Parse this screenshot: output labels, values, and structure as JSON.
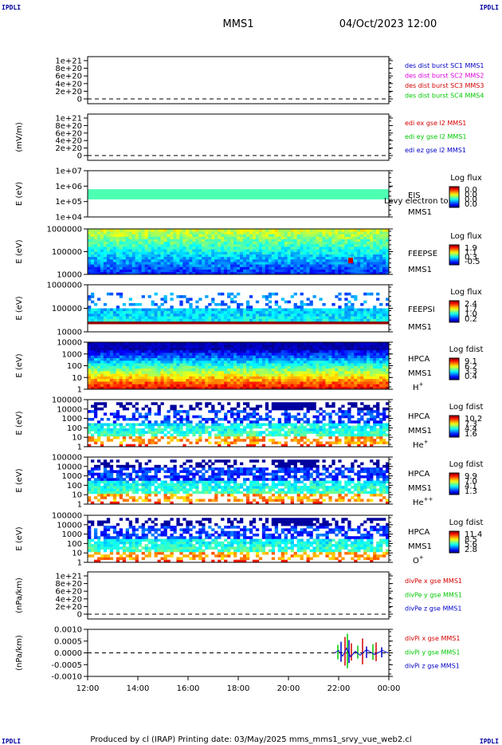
{
  "corners": {
    "tl": "IPDLI",
    "tr": "IPDLI",
    "bl": "IPDLI",
    "br": "IPDLI"
  },
  "header": {
    "mission": "MMS1",
    "date": "04/Oct/2023 12:00"
  },
  "footer": {
    "text": "Produced by cl (IRAP)   Printing date: 03/May/2025   mms_mms1_srvy_vue_web2.cl"
  },
  "colors": {
    "red": "#d40000",
    "green": "#00c800",
    "blue": "#0000c8",
    "magenta": "#e000e0"
  },
  "chart_data": {
    "type": "heatmap",
    "x_ticks": [
      "12:00",
      "14:00",
      "16:00",
      "18:00",
      "20:00",
      "22:00",
      "00:00"
    ],
    "panels": [
      {
        "id": "p1",
        "kind": "line",
        "ylabel": "",
        "yticks": [
          "1e+21",
          "8e+20",
          "6e+20",
          "4e+20",
          "2e+20",
          "0"
        ],
        "legend": [
          {
            "text": "des dist burst SC1 MMS1",
            "color": "blue"
          },
          {
            "text": "des dist burst SC2 MMS2",
            "color": "magenta"
          },
          {
            "text": "des dist burst SC3 MMS3",
            "color": "red"
          },
          {
            "text": "des dist burst SC4 MMS4",
            "color": "green"
          }
        ]
      },
      {
        "id": "p2",
        "kind": "line",
        "ylabel": "(mV/m)",
        "yticks": [
          "1e+21",
          "8e+20",
          "6e+20",
          "4e+20",
          "2e+20",
          "0"
        ],
        "legend": [
          {
            "text": "edi ex gse l2 MMS1",
            "color": "red"
          },
          {
            "text": "edi ey gse l2 MMS1",
            "color": "green"
          },
          {
            "text": "edi ez gse l2 MMS1",
            "color": "blue"
          }
        ]
      },
      {
        "id": "p3",
        "kind": "spec",
        "ylabel": "E (eV)",
        "yticks": [
          "1e+07",
          "1e+06",
          "1e+05",
          "1e+04"
        ],
        "labels": [
          "EIS",
          "MMS1"
        ],
        "overlay": "Levy electron to",
        "cb_title": "Log flux",
        "cb_ticks": [
          "0.0",
          "0.0",
          "0.0",
          "0.0"
        ]
      },
      {
        "id": "p4",
        "kind": "spec",
        "ylabel": "E (eV)",
        "yticks": [
          "1000000",
          "100000",
          "10000"
        ],
        "labels": [
          "FEEPSE",
          "MMS1"
        ],
        "cb_title": "Log flux",
        "cb_ticks": [
          "1.9",
          "1.1",
          "0.3",
          "-0.5"
        ]
      },
      {
        "id": "p5",
        "kind": "spec",
        "ylabel": "E (eV)",
        "yticks": [
          "1000000",
          "100000",
          "10000"
        ],
        "labels": [
          "FEEPSI",
          "MMS1"
        ],
        "cb_title": "Log flux",
        "cb_ticks": [
          "2.4",
          "1.7",
          "1.0",
          "0.2"
        ]
      },
      {
        "id": "p6",
        "kind": "spec",
        "ylabel": "E (eV)",
        "yticks": [
          "10000",
          "1000",
          "100",
          "10",
          "1"
        ],
        "labels": [
          "HPCA",
          "MMS1"
        ],
        "species": "H",
        "species_sup": "+",
        "cb_title": "Log fdist",
        "cb_ticks": [
          "9.1",
          "6.2",
          "3.3",
          "0.4"
        ]
      },
      {
        "id": "p7",
        "kind": "spec",
        "ylabel": "E (eV)",
        "yticks": [
          "100000",
          "10000",
          "1000",
          "100",
          "10",
          "1"
        ],
        "labels": [
          "HPCA",
          "MMS1"
        ],
        "species": "He",
        "species_sup": "+",
        "cb_title": "Log fdist",
        "cb_ticks": [
          "10.2",
          "7.3",
          "4.4",
          "1.6"
        ]
      },
      {
        "id": "p8",
        "kind": "spec",
        "ylabel": "E (eV)",
        "yticks": [
          "100000",
          "10000",
          "1000",
          "100",
          "10",
          "1"
        ],
        "labels": [
          "HPCA",
          "MMS1"
        ],
        "species": "He",
        "species_sup": "++",
        "cb_title": "Log fdist",
        "cb_ticks": [
          "9.9",
          "7.0",
          "4.1",
          "1.3"
        ]
      },
      {
        "id": "p9",
        "kind": "spec",
        "ylabel": "E (eV)",
        "yticks": [
          "100000",
          "10000",
          "1000",
          "100",
          "10",
          "1"
        ],
        "labels": [
          "HPCA",
          "MMS1"
        ],
        "species": "O",
        "species_sup": "+",
        "cb_title": "Log fdist",
        "cb_ticks": [
          "11.4",
          "8.5",
          "5.6",
          "2.8"
        ]
      },
      {
        "id": "p10",
        "kind": "line",
        "ylabel": "(nPa/km)",
        "yticks": [
          "1e+21",
          "8e+20",
          "6e+20",
          "4e+20",
          "2e+20",
          "0"
        ],
        "legend": [
          {
            "text": "divPe x gse MMS1",
            "color": "red"
          },
          {
            "text": "divPe y gse MMS1",
            "color": "green"
          },
          {
            "text": "divPe z gse MMS1",
            "color": "blue"
          }
        ]
      },
      {
        "id": "p11",
        "kind": "line",
        "ylabel": "(nPa/km)",
        "yticks": [
          "0.0010",
          "0.0005",
          "0.0000",
          "-0.0005",
          "-0.0010"
        ],
        "legend": [
          {
            "text": "divPi x gse MMS1",
            "color": "red"
          },
          {
            "text": "divPi y gse MMS1",
            "color": "green"
          },
          {
            "text": "divPi z gse MMS1",
            "color": "blue"
          }
        ]
      }
    ]
  }
}
